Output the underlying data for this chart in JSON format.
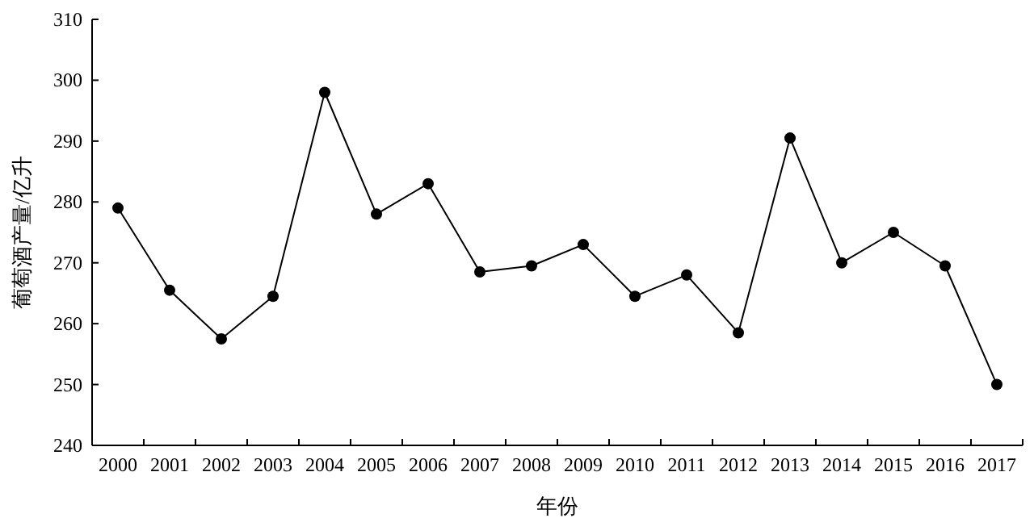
{
  "chart_data": {
    "type": "line",
    "xlabel": "年份",
    "ylabel": "葡萄酒产量/亿升",
    "categories": [
      "2000",
      "2001",
      "2002",
      "2003",
      "2004",
      "2005",
      "2006",
      "2007",
      "2008",
      "2009",
      "2010",
      "2011",
      "2012",
      "2013",
      "2014",
      "2015",
      "2016",
      "2017"
    ],
    "series": [
      {
        "color": "#000000",
        "values": [
          279,
          265.5,
          257.5,
          264.5,
          298,
          278,
          283,
          268.5,
          269.5,
          273,
          264.5,
          268,
          258.5,
          290.5,
          270,
          275,
          269.5,
          250
        ]
      }
    ],
    "ylim": [
      240,
      310
    ],
    "yticks": [
      240,
      250,
      260,
      270,
      280,
      290,
      300,
      310
    ],
    "marker": "circle",
    "line_style": "solid"
  }
}
